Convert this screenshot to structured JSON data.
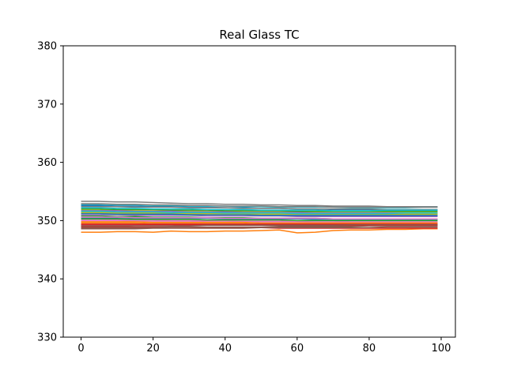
{
  "chart_data": {
    "type": "line",
    "title": "Real Glass TC",
    "xlabel": "",
    "ylabel": "",
    "xlim": [
      -4.95,
      103.95
    ],
    "ylim": [
      330,
      380
    ],
    "x_ticks": [
      0,
      20,
      40,
      60,
      80,
      100
    ],
    "y_ticks": [
      330,
      340,
      350,
      360,
      370,
      380
    ],
    "x_tick_labels": [
      "0",
      "20",
      "40",
      "60",
      "80",
      "100"
    ],
    "y_tick_labels": [
      "330",
      "340",
      "350",
      "360",
      "370",
      "380"
    ],
    "grid": false,
    "legend": "none",
    "color_cycle": [
      "#1f77b4",
      "#ff7f0e",
      "#2ca02c",
      "#d62728",
      "#9467bd",
      "#8c564b",
      "#e377c2",
      "#7f7f7f",
      "#bcbd22",
      "#17becf"
    ],
    "x": [
      0,
      5,
      10,
      15,
      20,
      25,
      30,
      35,
      40,
      45,
      50,
      55,
      60,
      65,
      70,
      75,
      80,
      85,
      90,
      95,
      99
    ],
    "series": [
      {
        "color": "#1f77b4",
        "values": [
          352.6,
          352.6,
          352.5,
          352.5,
          352.4,
          352.4,
          352.3,
          352.3,
          352.2,
          352.2,
          352.1,
          352.1,
          352.0,
          352.0,
          351.9,
          351.9,
          351.9,
          351.8,
          351.8,
          351.8,
          351.8
        ]
      },
      {
        "color": "#ff7f0e",
        "values": [
          348.0,
          348.0,
          348.1,
          348.1,
          348.0,
          348.2,
          348.1,
          348.1,
          348.2,
          348.2,
          348.3,
          348.4,
          347.9,
          348.0,
          348.3,
          348.4,
          348.4,
          348.5,
          348.5,
          348.6,
          348.6
        ]
      },
      {
        "color": "#2ca02c",
        "values": [
          350.8,
          350.8,
          350.7,
          350.7,
          350.6,
          350.6,
          350.6,
          350.5,
          350.5,
          350.5,
          350.4,
          350.4,
          350.4,
          350.4,
          350.3,
          350.3,
          350.3,
          350.3,
          350.3,
          350.3,
          350.3
        ]
      },
      {
        "color": "#d62728",
        "values": [
          349.0,
          349.0,
          349.0,
          348.9,
          348.9,
          348.9,
          348.9,
          348.8,
          348.8,
          348.8,
          348.8,
          348.7,
          348.7,
          348.7,
          348.7,
          348.7,
          348.7,
          348.7,
          348.7,
          348.7,
          348.7
        ]
      },
      {
        "color": "#9467bd",
        "values": [
          351.5,
          351.5,
          351.4,
          351.4,
          351.4,
          351.3,
          351.3,
          351.3,
          351.2,
          351.2,
          351.2,
          351.1,
          351.1,
          351.1,
          351.1,
          351.0,
          351.0,
          351.0,
          351.0,
          351.0,
          351.0
        ]
      },
      {
        "color": "#8c564b",
        "values": [
          348.8,
          348.8,
          348.8,
          348.8,
          348.8,
          348.9,
          348.9,
          348.9,
          348.9,
          348.9,
          348.9,
          349.0,
          349.0,
          349.0,
          349.0,
          349.0,
          349.1,
          349.1,
          349.1,
          349.1,
          349.1
        ]
      },
      {
        "color": "#e377c2",
        "values": [
          350.2,
          350.2,
          350.1,
          350.1,
          350.1,
          350.0,
          350.0,
          350.0,
          350.0,
          349.9,
          349.9,
          349.9,
          349.9,
          349.9,
          349.9,
          349.8,
          349.8,
          349.8,
          349.8,
          349.8,
          349.8
        ]
      },
      {
        "color": "#7f7f7f",
        "values": [
          353.3,
          353.3,
          353.2,
          353.2,
          353.1,
          353.0,
          352.9,
          352.9,
          352.8,
          352.8,
          352.7,
          352.7,
          352.6,
          352.6,
          352.5,
          352.5,
          352.5,
          352.4,
          352.4,
          352.4,
          352.4
        ]
      },
      {
        "color": "#bcbd22",
        "values": [
          351.8,
          351.8,
          351.8,
          351.7,
          351.7,
          351.7,
          351.6,
          351.6,
          351.6,
          351.5,
          351.5,
          351.5,
          351.5,
          351.4,
          351.4,
          351.4,
          351.4,
          351.4,
          351.4,
          351.4,
          351.4
        ]
      },
      {
        "color": "#17becf",
        "values": [
          352.8,
          352.8,
          352.7,
          352.7,
          352.6,
          352.6,
          352.5,
          352.5,
          352.5,
          352.4,
          352.4,
          352.3,
          352.3,
          352.3,
          352.3,
          352.2,
          352.2,
          352.2,
          352.2,
          352.3,
          352.3
        ]
      },
      {
        "color": "#1f77b4",
        "values": [
          350.5,
          350.5,
          350.5,
          350.4,
          350.4,
          350.4,
          350.4,
          350.4,
          350.3,
          350.3,
          350.3,
          350.3,
          350.3,
          350.2,
          350.2,
          350.2,
          350.2,
          350.2,
          350.2,
          350.2,
          350.2
        ]
      },
      {
        "color": "#ff7f0e",
        "values": [
          349.6,
          349.6,
          349.6,
          349.6,
          349.5,
          349.5,
          349.5,
          349.5,
          349.5,
          349.5,
          349.4,
          349.4,
          349.4,
          349.4,
          349.4,
          349.4,
          349.4,
          349.4,
          349.4,
          349.4,
          349.4
        ]
      },
      {
        "color": "#2ca02c",
        "values": [
          352.0,
          352.0,
          351.9,
          351.9,
          351.9,
          351.8,
          351.8,
          351.8,
          351.7,
          351.7,
          351.7,
          351.7,
          351.6,
          351.6,
          351.6,
          351.6,
          351.6,
          351.6,
          351.6,
          351.6,
          351.6
        ]
      },
      {
        "color": "#d62728",
        "values": [
          349.3,
          349.3,
          349.3,
          349.3,
          349.3,
          349.3,
          349.2,
          349.2,
          349.2,
          349.2,
          349.2,
          349.2,
          349.2,
          349.2,
          349.2,
          349.2,
          349.2,
          349.2,
          349.2,
          349.2,
          349.2
        ]
      },
      {
        "color": "#9467bd",
        "values": [
          351.0,
          351.0,
          351.0,
          350.9,
          350.9,
          350.9,
          350.9,
          350.8,
          350.8,
          350.8,
          350.8,
          350.8,
          350.7,
          350.7,
          350.7,
          350.7,
          350.7,
          350.7,
          350.7,
          350.7,
          350.7
        ]
      },
      {
        "color": "#8c564b",
        "values": [
          348.6,
          348.6,
          348.6,
          348.6,
          348.7,
          348.7,
          348.7,
          348.7,
          348.7,
          348.7,
          348.8,
          348.8,
          348.8,
          348.8,
          348.8,
          348.8,
          348.8,
          348.9,
          348.9,
          348.9,
          348.9
        ]
      },
      {
        "color": "#e377c2",
        "values": [
          350.0,
          350.0,
          350.0,
          349.9,
          349.9,
          349.9,
          349.9,
          349.8,
          349.8,
          349.8,
          349.8,
          349.8,
          349.8,
          349.7,
          349.7,
          349.7,
          349.7,
          349.7,
          349.7,
          349.7,
          349.7
        ]
      },
      {
        "color": "#7f7f7f",
        "values": [
          352.4,
          352.4,
          352.4,
          352.3,
          352.3,
          352.3,
          352.2,
          352.2,
          352.2,
          352.1,
          352.1,
          352.1,
          352.0,
          352.0,
          352.0,
          352.0,
          352.0,
          351.9,
          351.9,
          351.9,
          351.9
        ]
      },
      {
        "color": "#bcbd22",
        "values": [
          351.3,
          351.3,
          351.3,
          351.2,
          351.2,
          351.2,
          351.1,
          351.1,
          351.1,
          351.1,
          351.0,
          351.0,
          351.0,
          351.0,
          350.9,
          350.9,
          350.9,
          350.9,
          350.9,
          350.9,
          350.9
        ]
      },
      {
        "color": "#17becf",
        "values": [
          352.2,
          352.2,
          352.1,
          352.1,
          352.0,
          352.0,
          352.0,
          351.9,
          351.9,
          351.9,
          351.8,
          351.8,
          351.8,
          351.8,
          351.7,
          351.7,
          351.7,
          351.8,
          351.8,
          351.8,
          351.8
        ]
      },
      {
        "color": "#1f77b4",
        "values": [
          351.2,
          351.2,
          351.1,
          351.1,
          351.1,
          351.1,
          351.0,
          351.0,
          351.0,
          351.0,
          350.9,
          350.9,
          350.9,
          350.9,
          350.9,
          350.9,
          350.9,
          350.9,
          350.9,
          350.9,
          350.9
        ]
      },
      {
        "color": "#ff7f0e",
        "values": [
          349.8,
          349.8,
          349.8,
          349.8,
          349.7,
          349.7,
          349.7,
          349.7,
          349.7,
          349.7,
          349.6,
          349.6,
          349.6,
          349.6,
          349.6,
          349.6,
          349.6,
          349.6,
          349.6,
          349.6,
          349.6
        ]
      },
      {
        "color": "#2ca02c",
        "values": [
          350.3,
          350.3,
          350.3,
          350.2,
          350.2,
          350.2,
          350.2,
          350.1,
          350.1,
          350.1,
          350.1,
          350.1,
          350.0,
          350.0,
          350.0,
          350.0,
          350.0,
          350.0,
          350.0,
          350.0,
          350.0
        ]
      },
      {
        "color": "#d62728",
        "values": [
          349.4,
          349.4,
          349.4,
          349.4,
          349.4,
          349.4,
          349.4,
          349.4,
          349.4,
          349.4,
          349.4,
          349.4,
          349.4,
          349.4,
          349.4,
          349.4,
          349.4,
          349.4,
          349.4,
          349.4,
          349.4
        ]
      },
      {
        "color": "#9467bd",
        "values": [
          351.7,
          351.7,
          351.7,
          351.6,
          351.6,
          351.6,
          351.5,
          351.5,
          351.5,
          351.4,
          351.4,
          351.4,
          351.4,
          351.3,
          351.3,
          351.3,
          351.3,
          351.3,
          351.3,
          351.3,
          351.3
        ]
      },
      {
        "color": "#8c564b",
        "values": [
          349.1,
          349.1,
          349.1,
          349.1,
          349.1,
          349.1,
          349.1,
          349.2,
          349.2,
          349.2,
          349.2,
          349.2,
          349.2,
          349.2,
          349.2,
          349.3,
          349.3,
          349.3,
          349.3,
          349.3,
          349.3
        ]
      },
      {
        "color": "#e377c2",
        "values": [
          350.6,
          350.6,
          350.6,
          350.5,
          350.5,
          350.5,
          350.5,
          350.5,
          350.4,
          350.4,
          350.4,
          350.4,
          350.4,
          350.4,
          350.3,
          350.3,
          350.3,
          350.3,
          350.3,
          350.3,
          350.3
        ]
      },
      {
        "color": "#7f7f7f",
        "values": [
          352.9,
          352.9,
          352.8,
          352.8,
          352.7,
          352.7,
          352.6,
          352.6,
          352.5,
          352.5,
          352.5,
          352.4,
          352.4,
          352.4,
          352.3,
          352.3,
          352.3,
          352.3,
          352.3,
          352.3,
          352.3
        ]
      },
      {
        "color": "#bcbd22",
        "values": [
          351.4,
          351.4,
          351.4,
          351.3,
          351.3,
          351.3,
          351.3,
          351.2,
          351.2,
          351.2,
          351.2,
          351.1,
          351.1,
          351.1,
          351.1,
          351.1,
          351.1,
          351.1,
          351.1,
          351.1,
          351.1
        ]
      },
      {
        "color": "#17becf",
        "values": [
          351.6,
          351.6,
          351.5,
          351.5,
          351.5,
          351.4,
          351.4,
          351.4,
          351.3,
          351.3,
          351.3,
          351.3,
          351.2,
          351.2,
          351.2,
          351.2,
          351.2,
          351.2,
          351.3,
          351.3,
          351.3
        ]
      }
    ]
  }
}
